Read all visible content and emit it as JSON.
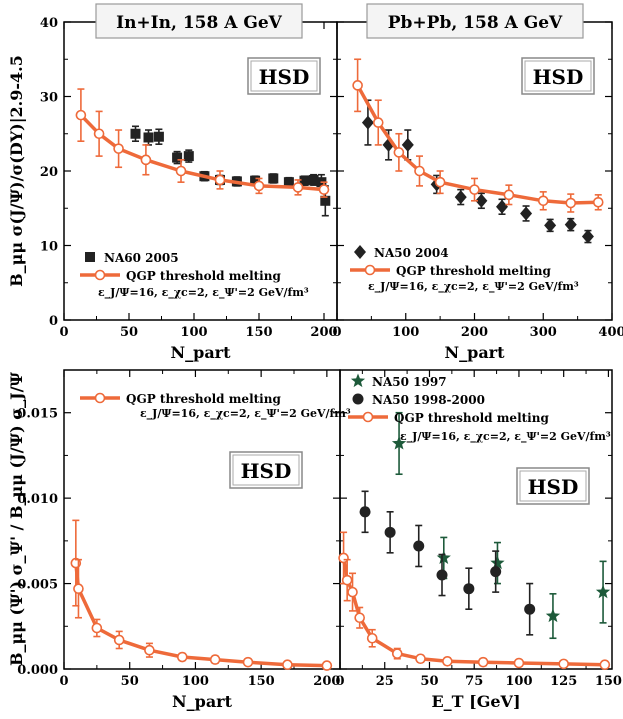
{
  "colors": {
    "model": "#ee6a3a",
    "data_black": "#222222",
    "data_green": "#1d5a3a"
  },
  "upper_ylabel": "B_μμ σ(J/Ψ)/σ(DY)|2.9-4.5",
  "lower_ylabel": "B_μμ (Ψ') σ_Ψ' / B_μμ (J/Ψ) σ_J/Ψ",
  "chart_data": [
    {
      "type": "scatter",
      "title": "In+In, 158 A GeV",
      "badge": "HSD",
      "xlabel": "N_part",
      "xlim": [
        0,
        210
      ],
      "ylim": [
        0,
        40
      ],
      "xticks": [
        0,
        50,
        100,
        150,
        200
      ],
      "yticks": [
        0,
        10,
        20,
        30,
        40
      ],
      "xtick_labels": [
        "0",
        "50",
        "100",
        "150",
        "200"
      ],
      "ytick_labels": [
        "0",
        "10",
        "20",
        "30",
        "40"
      ],
      "annotation": "ε_J/Ψ=16, ε_χc=2, ε_Ψ'=2 GeV/fm³",
      "series": [
        {
          "name": "NA60 2005",
          "marker": "square",
          "color": "#222222",
          "points": [
            [
              55,
              25.0,
              1.0
            ],
            [
              65,
              24.5,
              1.0
            ],
            [
              73,
              24.6,
              1.0
            ],
            [
              87,
              21.8,
              0.8
            ],
            [
              96,
              22.0,
              0.8
            ],
            [
              108,
              19.3,
              0.6
            ],
            [
              120,
              18.8,
              0.6
            ],
            [
              133,
              18.6,
              0.6
            ],
            [
              147,
              18.7,
              0.6
            ],
            [
              161,
              19.0,
              0.6
            ],
            [
              173,
              18.5,
              0.6
            ],
            [
              185,
              18.7,
              0.6
            ],
            [
              192,
              18.8,
              0.7
            ],
            [
              198,
              18.5,
              1.0
            ],
            [
              201,
              16.0,
              2.0
            ]
          ]
        },
        {
          "name": "QGP threshold melting",
          "marker": "open-circle-line",
          "color": "#ee6a3a",
          "points": [
            [
              13,
              27.5,
              3.5
            ],
            [
              27,
              25.0,
              3.0
            ],
            [
              42,
              23.0,
              2.5
            ],
            [
              63,
              21.5,
              2.0
            ],
            [
              90,
              20.0,
              1.5
            ],
            [
              120,
              18.8,
              1.2
            ],
            [
              150,
              18.0,
              1.0
            ],
            [
              180,
              17.8,
              1.0
            ],
            [
              200,
              17.5,
              1.0
            ]
          ]
        }
      ]
    },
    {
      "type": "scatter",
      "title": "Pb+Pb, 158 A GeV",
      "badge": "HSD",
      "xlabel": "N_part",
      "xlim": [
        0,
        400
      ],
      "ylim": [
        0,
        40
      ],
      "xticks": [
        0,
        100,
        200,
        300,
        400
      ],
      "yticks": [
        0,
        10,
        20,
        30,
        40
      ],
      "xtick_labels": [
        "0",
        "100",
        "200",
        "300",
        "400"
      ],
      "ytick_labels": [],
      "annotation": "ε_J/Ψ=16, ε_χc=2, ε_Ψ'=2 GeV/fm³",
      "series": [
        {
          "name": "NA50 2004",
          "marker": "diamond",
          "color": "#222222",
          "points": [
            [
              45,
              26.5,
              3.0
            ],
            [
              75,
              23.5,
              2.0
            ],
            [
              103,
              23.5,
              2.0
            ],
            [
              145,
              18.2,
              1.2
            ],
            [
              180,
              16.5,
              1.0
            ],
            [
              210,
              16.0,
              1.0
            ],
            [
              240,
              15.2,
              1.0
            ],
            [
              275,
              14.3,
              1.0
            ],
            [
              310,
              12.7,
              0.8
            ],
            [
              340,
              12.8,
              0.8
            ],
            [
              365,
              11.2,
              0.8
            ]
          ]
        },
        {
          "name": "QGP threshold melting",
          "marker": "open-circle-line",
          "color": "#ee6a3a",
          "points": [
            [
              30,
              31.5,
              3.5
            ],
            [
              60,
              26.5,
              3.0
            ],
            [
              90,
              22.5,
              2.5
            ],
            [
              120,
              20.0,
              2.0
            ],
            [
              150,
              18.5,
              1.5
            ],
            [
              200,
              17.5,
              1.5
            ],
            [
              250,
              16.8,
              1.3
            ],
            [
              300,
              16.0,
              1.2
            ],
            [
              340,
              15.7,
              1.2
            ],
            [
              380,
              15.8,
              1.0
            ]
          ]
        }
      ]
    },
    {
      "type": "scatter",
      "title": "",
      "badge": "HSD",
      "xlabel": "N_part",
      "xlim": [
        0,
        210
      ],
      "ylim": [
        0,
        0.0175
      ],
      "xticks": [
        0,
        50,
        100,
        150,
        200
      ],
      "yticks": [
        0,
        0.005,
        0.01,
        0.015
      ],
      "xtick_labels": [
        "0",
        "50",
        "100",
        "150",
        "200"
      ],
      "ytick_labels": [
        "0.000",
        "0.005",
        "0.010",
        "0.015"
      ],
      "annotation": "ε_J/Ψ=16, ε_χc=2, ε_Ψ'=2 GeV/fm³",
      "series": [
        {
          "name": "QGP threshold melting",
          "marker": "open-circle-line",
          "color": "#ee6a3a",
          "points": [
            [
              9,
              0.0062,
              0.0025
            ],
            [
              11,
              0.0047,
              0.0017
            ],
            [
              25,
              0.0024,
              0.0005
            ],
            [
              42,
              0.0017,
              0.0005
            ],
            [
              65,
              0.0011,
              0.0004
            ],
            [
              90,
              0.0007,
              0.0002
            ],
            [
              115,
              0.00055,
              0.0002
            ],
            [
              140,
              0.0004,
              0.00015
            ],
            [
              170,
              0.00025,
              0.00012
            ],
            [
              200,
              0.0002,
              0.0001
            ]
          ]
        }
      ]
    },
    {
      "type": "scatter",
      "title": "",
      "badge": "HSD",
      "xlabel": "E_T [GeV]",
      "xlim": [
        0,
        152
      ],
      "ylim": [
        0,
        0.0175
      ],
      "xticks": [
        0,
        25,
        50,
        75,
        100,
        125,
        150
      ],
      "yticks": [
        0,
        0.005,
        0.01,
        0.015
      ],
      "xtick_labels": [
        "0",
        "25",
        "50",
        "75",
        "100",
        "125",
        "150"
      ],
      "ytick_labels": [],
      "annotation": "ε_J/Ψ=16, ε_χc=2, ε_Ψ'=2 GeV/fm³",
      "series": [
        {
          "name": "NA50 1997",
          "marker": "star",
          "color": "#1d5a3a",
          "points": [
            [
              33,
              0.0132,
              0.0018
            ],
            [
              58,
              0.0065,
              0.0012
            ],
            [
              88,
              0.0062,
              0.0012
            ],
            [
              119,
              0.0031,
              0.0013
            ],
            [
              147,
              0.0045,
              0.0018
            ]
          ]
        },
        {
          "name": "NA50 1998-2000",
          "marker": "circle",
          "color": "#222222",
          "points": [
            [
              14,
              0.0092,
              0.0012
            ],
            [
              28,
              0.008,
              0.0012
            ],
            [
              44,
              0.0072,
              0.0012
            ],
            [
              57,
              0.0055,
              0.0012
            ],
            [
              72,
              0.0047,
              0.0012
            ],
            [
              87,
              0.0057,
              0.0012
            ],
            [
              106,
              0.0035,
              0.0015
            ]
          ]
        },
        {
          "name": "QGP threshold melting",
          "marker": "open-circle-line",
          "color": "#ee6a3a",
          "points": [
            [
              2,
              0.0065,
              0.0015
            ],
            [
              4,
              0.0052,
              0.0012
            ],
            [
              7,
              0.0045,
              0.0011
            ],
            [
              11,
              0.003,
              0.0006
            ],
            [
              18,
              0.0018,
              0.0005
            ],
            [
              32,
              0.0009,
              0.0003
            ],
            [
              45,
              0.0006,
              0.0002
            ],
            [
              60,
              0.00045,
              0.0002
            ],
            [
              80,
              0.0004,
              0.0002
            ],
            [
              100,
              0.00035,
              0.00015
            ],
            [
              125,
              0.0003,
              0.00015
            ],
            [
              148,
              0.00025,
              0.0001
            ]
          ]
        }
      ]
    }
  ]
}
